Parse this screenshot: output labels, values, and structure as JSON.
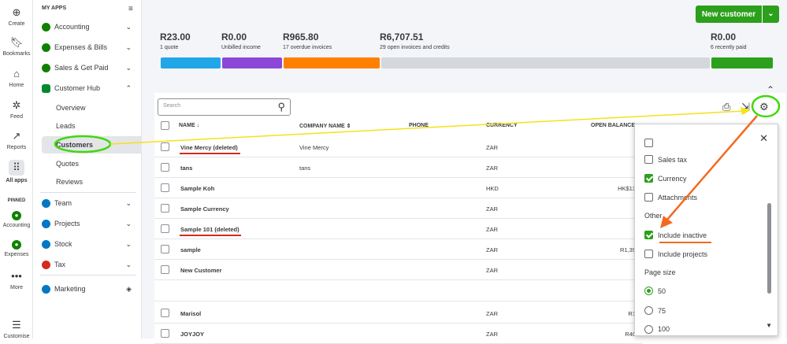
{
  "rail": {
    "items": [
      {
        "label": "Create",
        "icon": "plus-circle-icon"
      },
      {
        "label": "Bookmarks",
        "icon": "bookmark-icon"
      },
      {
        "label": "Home",
        "icon": "home-icon"
      },
      {
        "label": "Feed",
        "icon": "feed-icon"
      },
      {
        "label": "Reports",
        "icon": "reports-icon"
      },
      {
        "label": "All apps",
        "icon": "grid-icon"
      }
    ],
    "pinned_label": "PINNED",
    "pinned": [
      {
        "label": "Accounting"
      },
      {
        "label": "Expenses"
      }
    ],
    "more_label": "More",
    "customize_label": "Customise"
  },
  "nav": {
    "header": "MY APPS",
    "items": [
      {
        "label": "Accounting"
      },
      {
        "label": "Expenses & Bills"
      },
      {
        "label": "Sales & Get Paid"
      },
      {
        "label": "Customer Hub"
      }
    ],
    "sub_items": [
      {
        "label": "Overview"
      },
      {
        "label": "Leads"
      },
      {
        "label": "Customers"
      },
      {
        "label": "Quotes"
      },
      {
        "label": "Reviews"
      }
    ],
    "items2": [
      {
        "label": "Team"
      },
      {
        "label": "Projects"
      },
      {
        "label": "Stock"
      },
      {
        "label": "Tax"
      }
    ],
    "marketing": "Marketing"
  },
  "header": {
    "new_customer": "New customer"
  },
  "stats": [
    {
      "amount": "R23.00",
      "label": "1 quote"
    },
    {
      "amount": "R0.00",
      "label": "Unbilled income"
    },
    {
      "amount": "R965.80",
      "label": "17 overdue invoices"
    },
    {
      "amount": "R6,707.51",
      "label": "29 open invoices and credits"
    },
    {
      "amount": "R0.00",
      "label": "6 recently paid"
    }
  ],
  "colors": {
    "quote": "#21a6e8",
    "unbilled": "#8b48d8",
    "overdue": "#ff8000",
    "open": "#d4d7dc",
    "paid": "#2ca01c",
    "accent": "#2ca01c",
    "annot_yellow": "#f5e21a",
    "annot_orange": "#f26a21",
    "annot_green": "#3dd90c",
    "annot_red": "#d52b1e"
  },
  "search": {
    "placeholder": "Search"
  },
  "table": {
    "headers": {
      "name": "NAME",
      "company": "COMPANY NAME",
      "phone": "PHONE",
      "currency": "CURRENCY",
      "balance": "OPEN BALANCE"
    },
    "rows": [
      {
        "name": "Vine Mercy (deleted)",
        "company": "Vine Mercy",
        "currency": "ZAR",
        "balance": ""
      },
      {
        "name": "tans",
        "company": "tans",
        "currency": "ZAR",
        "balance": ""
      },
      {
        "name": "Sample Koh",
        "company": "",
        "currency": "HKD",
        "balance": "HK$13"
      },
      {
        "name": "Sample Currency",
        "company": "",
        "currency": "ZAR",
        "balance": ""
      },
      {
        "name": "Sample 101 (deleted)",
        "company": "",
        "currency": "ZAR",
        "balance": ""
      },
      {
        "name": "sample",
        "company": "",
        "currency": "ZAR",
        "balance": "R1,39"
      },
      {
        "name": "New Customer",
        "company": "",
        "currency": "ZAR",
        "balance": ""
      },
      {
        "name": "Marisol",
        "company": "",
        "currency": "ZAR",
        "balance": "R1"
      },
      {
        "name": "JOYJOY",
        "company": "",
        "currency": "ZAR",
        "balance": "R40"
      }
    ]
  },
  "settings": {
    "options": [
      {
        "label": "Sales tax",
        "checked": false
      },
      {
        "label": "Currency",
        "checked": true
      },
      {
        "label": "Attachments",
        "checked": false
      }
    ],
    "other_label": "Other",
    "other_options": [
      {
        "label": "Include inactive",
        "checked": true
      },
      {
        "label": "Include projects",
        "checked": false
      }
    ],
    "page_size_label": "Page size",
    "page_sizes": [
      {
        "label": "50",
        "selected": true
      },
      {
        "label": "75",
        "selected": false
      },
      {
        "label": "100",
        "selected": false
      }
    ]
  }
}
